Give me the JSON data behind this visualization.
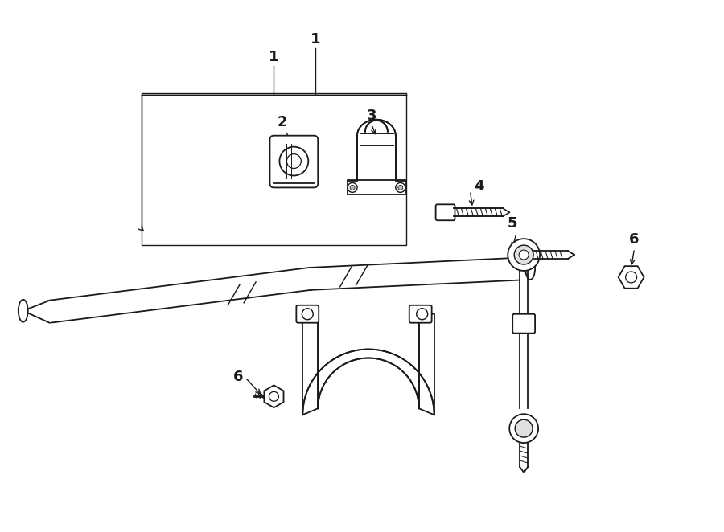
{
  "bg_color": "#ffffff",
  "line_color": "#1a1a1a",
  "fig_width": 9.0,
  "fig_height": 6.62,
  "dpi": 100,
  "label_fontsize": 12,
  "label_fontweight": "bold"
}
